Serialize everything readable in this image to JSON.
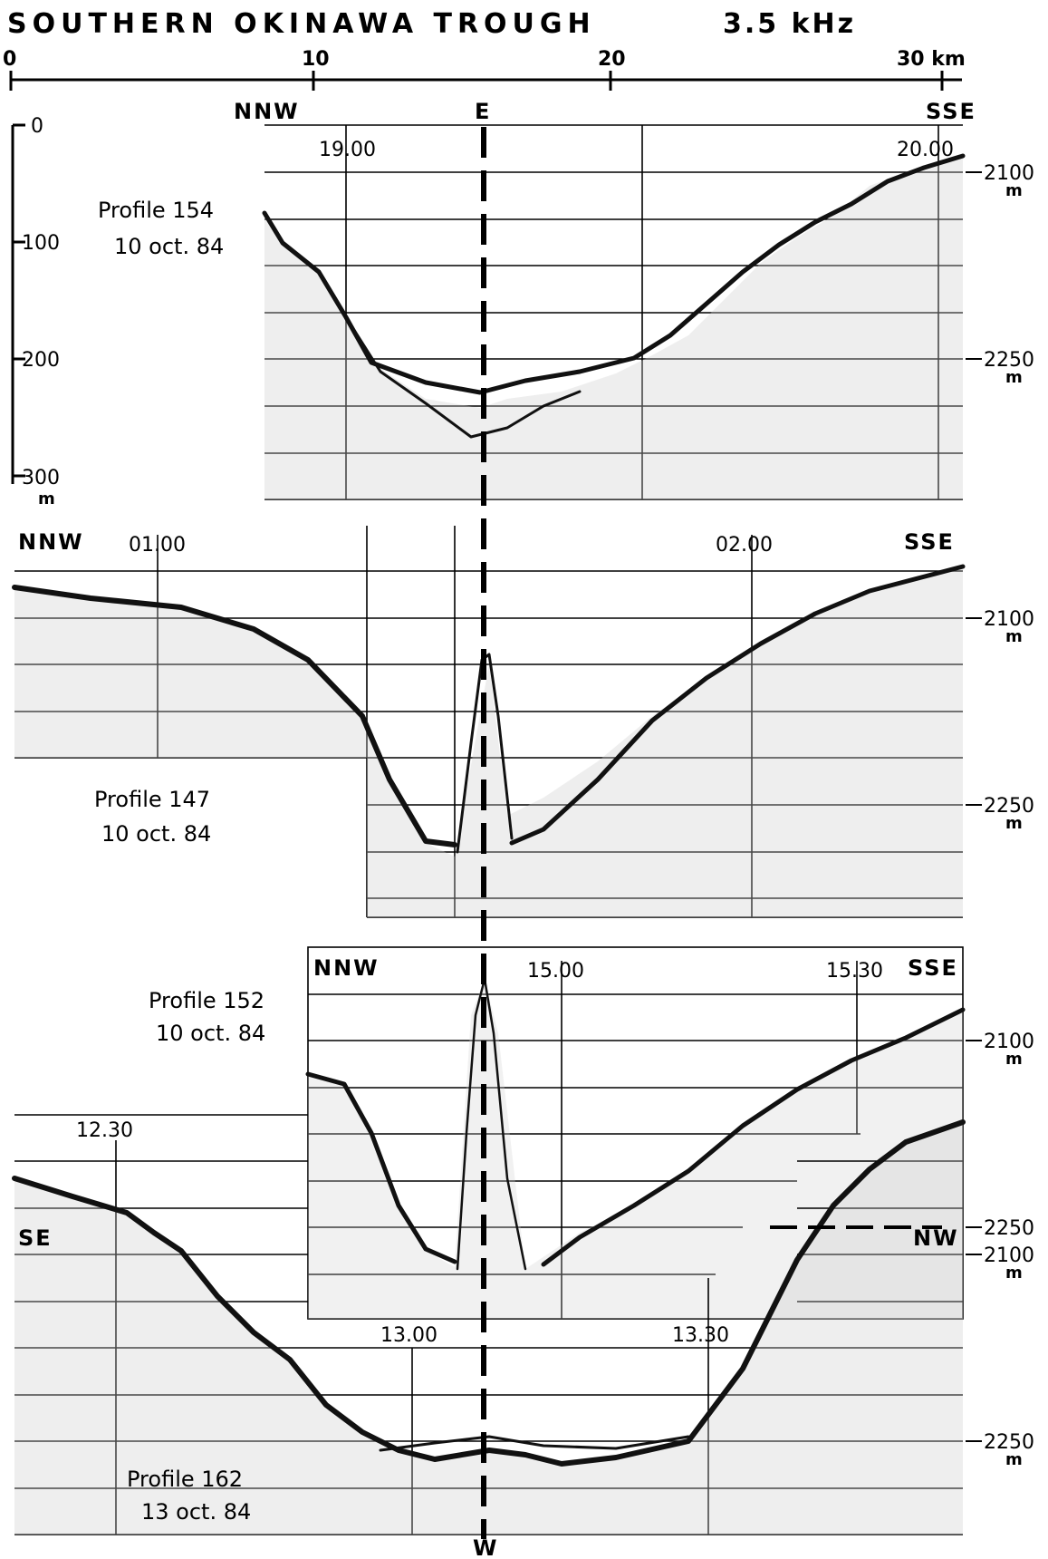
{
  "figure": {
    "title": "SOUTHERN OKINAWA TROUGH",
    "frequency": "3.5 kHz",
    "axis_ticks": [
      "0",
      "10",
      "20",
      "30 km"
    ],
    "vertical_scale": {
      "ticks": [
        "0",
        "100",
        "200",
        "300"
      ],
      "unit": "m"
    },
    "axis_marker_top": "E",
    "axis_marker_bottom": "W"
  },
  "profiles": [
    {
      "id": "154",
      "label": "Profile 154",
      "date": "10 oct. 84",
      "dir_left": "NNW",
      "dir_right": "SSE",
      "times": [
        "19.00",
        "20.00"
      ],
      "depth_labels": [
        "2100",
        "2250"
      ],
      "depth_unit": "m"
    },
    {
      "id": "147",
      "label": "Profile 147",
      "date": "10 oct. 84",
      "dir_left": "NNW",
      "dir_right": "SSE",
      "times": [
        "01.00",
        "02.00"
      ],
      "depth_labels": [
        "2100",
        "2250"
      ],
      "depth_unit": "m"
    },
    {
      "id": "152",
      "label": "Profile 152",
      "date": "10 oct. 84",
      "dir_left": "NNW",
      "dir_right": "SSE",
      "times": [
        "15.00",
        "15.30"
      ],
      "depth_labels": [
        "2100",
        "2250"
      ],
      "depth_unit": "m"
    },
    {
      "id": "162",
      "label": "Profile 162",
      "date": "13 oct. 84",
      "dir_left": "SE",
      "dir_right": "NW",
      "times": [
        "12.30",
        "13.00",
        "13.30"
      ],
      "depth_labels": [
        "2100",
        "2250"
      ],
      "depth_unit": "m"
    }
  ]
}
